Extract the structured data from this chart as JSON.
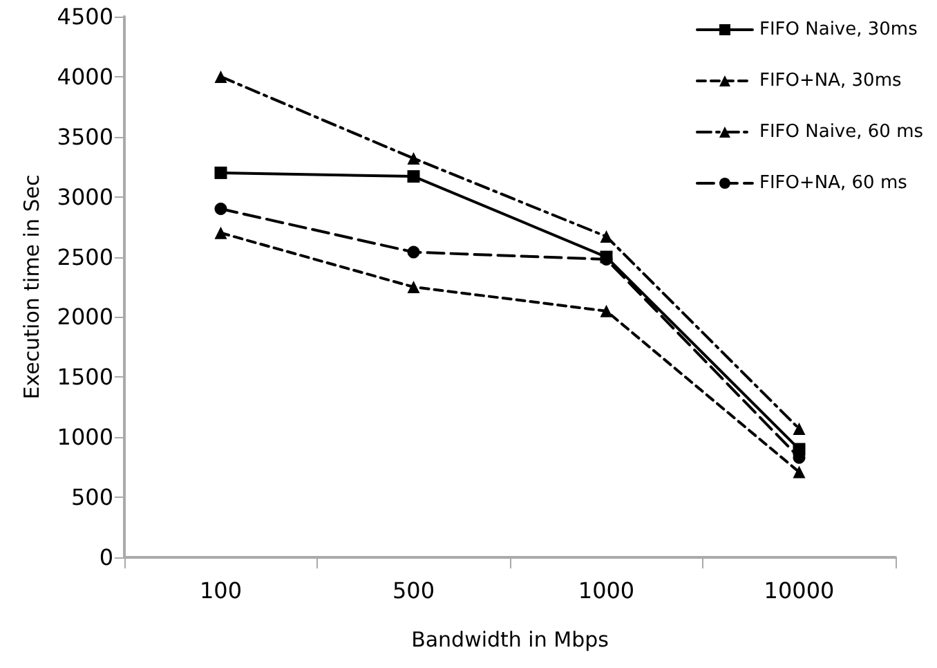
{
  "chart_data": {
    "type": "line",
    "xlabel": "Bandwidth in Mbps",
    "ylabel": "Execution time in Sec",
    "categories": [
      "100",
      "500",
      "1000",
      "10000"
    ],
    "series": [
      {
        "name": "FIFO Naive, 30ms",
        "color": "#000000",
        "marker": "square",
        "line_style": "solid",
        "values": [
          3200,
          3170,
          2500,
          900
        ]
      },
      {
        "name": "FIFO+NA, 30ms",
        "color": "#000000",
        "marker": "triangle",
        "line_style": "dashed",
        "values": [
          2700,
          2250,
          2050,
          710
        ]
      },
      {
        "name": "FIFO Naive, 60 ms",
        "color": "#000000",
        "marker": "triangle",
        "line_style": "dashdot",
        "values": [
          4000,
          3320,
          2670,
          1070
        ]
      },
      {
        "name": "FIFO+NA, 60 ms",
        "color": "#000000",
        "marker": "circle",
        "line_style": "longdash",
        "values": [
          2900,
          2540,
          2480,
          830
        ]
      }
    ],
    "ylim": [
      0,
      4500
    ],
    "yticks": [
      0,
      500,
      1000,
      1500,
      2000,
      2500,
      3000,
      3500,
      4000,
      4500
    ],
    "grid": false,
    "legend": "top right"
  }
}
